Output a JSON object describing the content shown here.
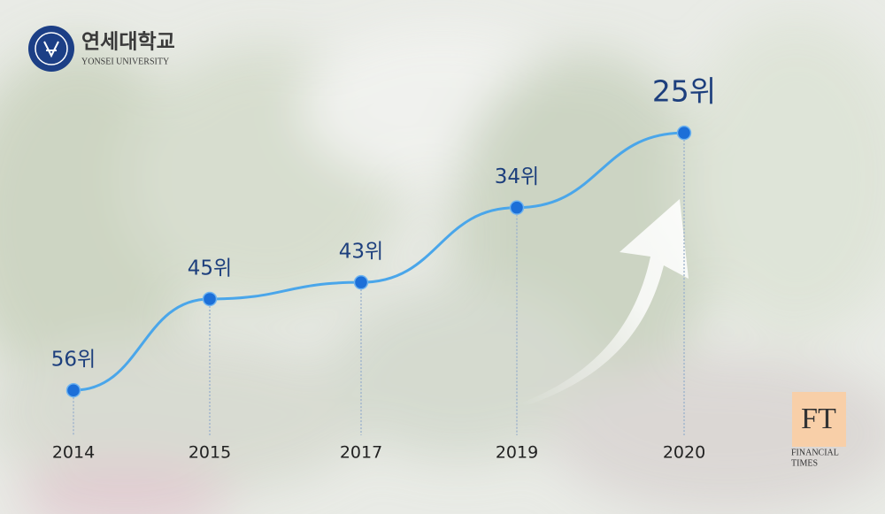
{
  "chart_data": {
    "type": "line",
    "categories": [
      "2014",
      "2015",
      "2017",
      "2019",
      "2020"
    ],
    "series": [
      {
        "color": "#4aa6ea",
        "values": [
          56,
          45,
          43,
          34,
          25
        ],
        "value_labels": [
          "56위",
          "45위",
          "43위",
          "34위",
          "25위"
        ]
      }
    ],
    "ylim": [
      58,
      22
    ],
    "marker_color": "#1c6fd8",
    "label_color": "#1d3f7d"
  },
  "university_logo": {
    "name": "연세대학교",
    "name_en": "YONSEI UNIVERSITY"
  },
  "source_logo": {
    "mark": "FT",
    "name_lines": [
      "FINANCIAL",
      "TIMES"
    ]
  }
}
